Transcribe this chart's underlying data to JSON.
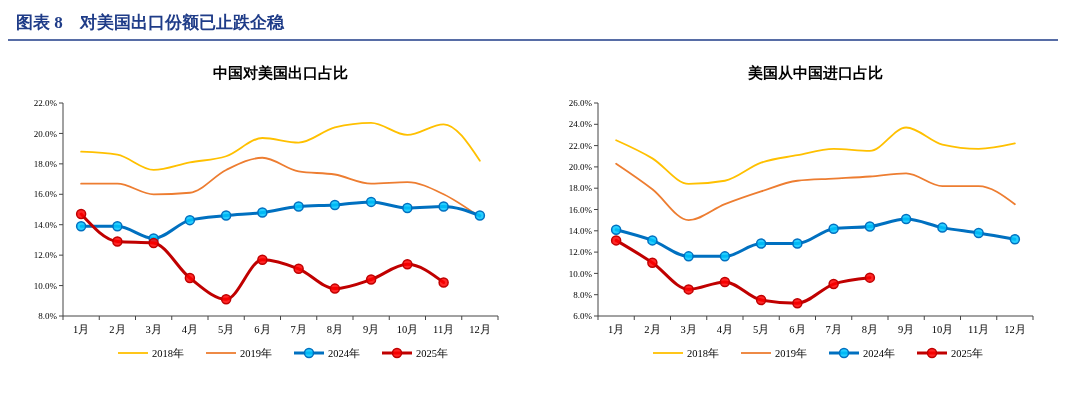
{
  "chart_data": [
    {
      "type": "line",
      "title": "图表 8　对美国出口份额已止跌企稳",
      "subtitle": "中国对美国出口占比",
      "categories": [
        "1月",
        "2月",
        "3月",
        "4月",
        "5月",
        "6月",
        "7月",
        "8月",
        "9月",
        "10月",
        "11月",
        "12月"
      ],
      "ylim": [
        8,
        22
      ],
      "yticks": [
        {
          "value": 8,
          "label": "8.0%"
        },
        {
          "value": 10,
          "label": "10.0%"
        },
        {
          "value": 12,
          "label": "12.0%"
        },
        {
          "value": 14,
          "label": "14.0%"
        },
        {
          "value": 16,
          "label": "16.0%"
        },
        {
          "value": 18,
          "label": "18.0%"
        },
        {
          "value": 20,
          "label": "20.0%"
        },
        {
          "value": 22,
          "label": "22.0%"
        }
      ],
      "grid": false,
      "legend": "bottom",
      "series": [
        {
          "name": "2018年",
          "color": "#ffc000",
          "marker": "none",
          "values": [
            18.8,
            18.6,
            17.6,
            18.1,
            18.5,
            19.7,
            19.4,
            20.4,
            20.7,
            19.9,
            20.6,
            18.2
          ]
        },
        {
          "name": "2019年",
          "color": "#ed7d31",
          "marker": "none",
          "values": [
            16.7,
            16.7,
            16.0,
            16.1,
            17.6,
            18.4,
            17.5,
            17.3,
            16.7,
            16.8,
            16.0,
            14.5
          ]
        },
        {
          "name": "2024年",
          "color": "#0070c0",
          "marker": "circle",
          "values": [
            13.9,
            13.9,
            13.1,
            14.3,
            14.6,
            14.8,
            15.2,
            15.3,
            15.5,
            15.1,
            15.2,
            14.6
          ]
        },
        {
          "name": "2025年",
          "color": "#c00000",
          "marker": "circle",
          "values": [
            14.7,
            12.9,
            12.8,
            10.5,
            9.1,
            11.7,
            11.1,
            9.8,
            10.4,
            11.4,
            10.2,
            null
          ]
        }
      ]
    },
    {
      "type": "line",
      "subtitle": "美国从中国进口占比",
      "categories": [
        "1月",
        "2月",
        "3月",
        "4月",
        "5月",
        "6月",
        "7月",
        "8月",
        "9月",
        "10月",
        "11月",
        "12月"
      ],
      "ylim": [
        6,
        26
      ],
      "yticks": [
        {
          "value": 6,
          "label": "6.0%"
        },
        {
          "value": 8,
          "label": "8.0%"
        },
        {
          "value": 10,
          "label": "10.0%"
        },
        {
          "value": 12,
          "label": "12.0%"
        },
        {
          "value": 14,
          "label": "14.0%"
        },
        {
          "value": 16,
          "label": "16.0%"
        },
        {
          "value": 18,
          "label": "18.0%"
        },
        {
          "value": 20,
          "label": "20.0%"
        },
        {
          "value": 22,
          "label": "22.0%"
        },
        {
          "value": 24,
          "label": "24.0%"
        },
        {
          "value": 26,
          "label": "26.0%"
        }
      ],
      "grid": false,
      "legend": "bottom",
      "series": [
        {
          "name": "2018年",
          "color": "#ffc000",
          "marker": "none",
          "values": [
            22.5,
            20.8,
            18.4,
            18.7,
            20.4,
            21.1,
            21.7,
            21.5,
            23.7,
            22.1,
            21.7,
            22.2
          ]
        },
        {
          "name": "2019年",
          "color": "#ed7d31",
          "marker": "none",
          "values": [
            20.3,
            17.9,
            15.0,
            16.5,
            17.7,
            18.7,
            18.9,
            19.1,
            19.4,
            18.2,
            18.2,
            16.5
          ]
        },
        {
          "name": "2024年",
          "color": "#0070c0",
          "marker": "circle",
          "values": [
            14.1,
            13.1,
            11.6,
            11.6,
            12.8,
            12.8,
            14.2,
            14.4,
            15.1,
            14.3,
            13.8,
            13.2
          ]
        },
        {
          "name": "2025年",
          "color": "#c00000",
          "marker": "circle",
          "values": [
            13.1,
            11.0,
            8.5,
            9.2,
            7.5,
            7.2,
            9.0,
            9.6,
            null,
            null,
            null,
            null
          ]
        }
      ]
    }
  ]
}
